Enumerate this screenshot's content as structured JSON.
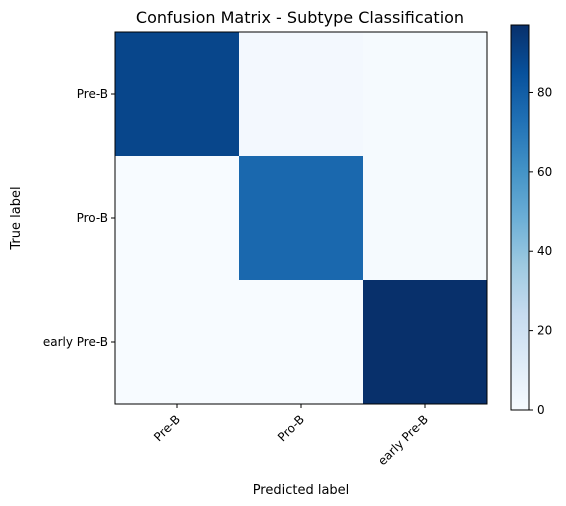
{
  "chart_data": {
    "type": "heatmap",
    "title": "Confusion Matrix - Subtype Classification",
    "xlabel": "Predicted label",
    "ylabel": "True label",
    "x_categories": [
      "Pre-B",
      "Pro-B",
      "early Pre-B"
    ],
    "y_categories": [
      "Pre-B",
      "Pro-B",
      "early Pre-B"
    ],
    "values": [
      [
        89,
        2,
        1
      ],
      [
        0,
        76,
        1
      ],
      [
        0,
        0,
        97
      ]
    ],
    "colormap": "Blues",
    "colorbar": {
      "min": 0,
      "max": 97,
      "ticks": [
        0,
        20,
        40,
        60,
        80
      ],
      "tick_labels": [
        "0",
        "20",
        "40",
        "60",
        "80"
      ]
    },
    "grid": false,
    "legend": "colorbar-right"
  }
}
